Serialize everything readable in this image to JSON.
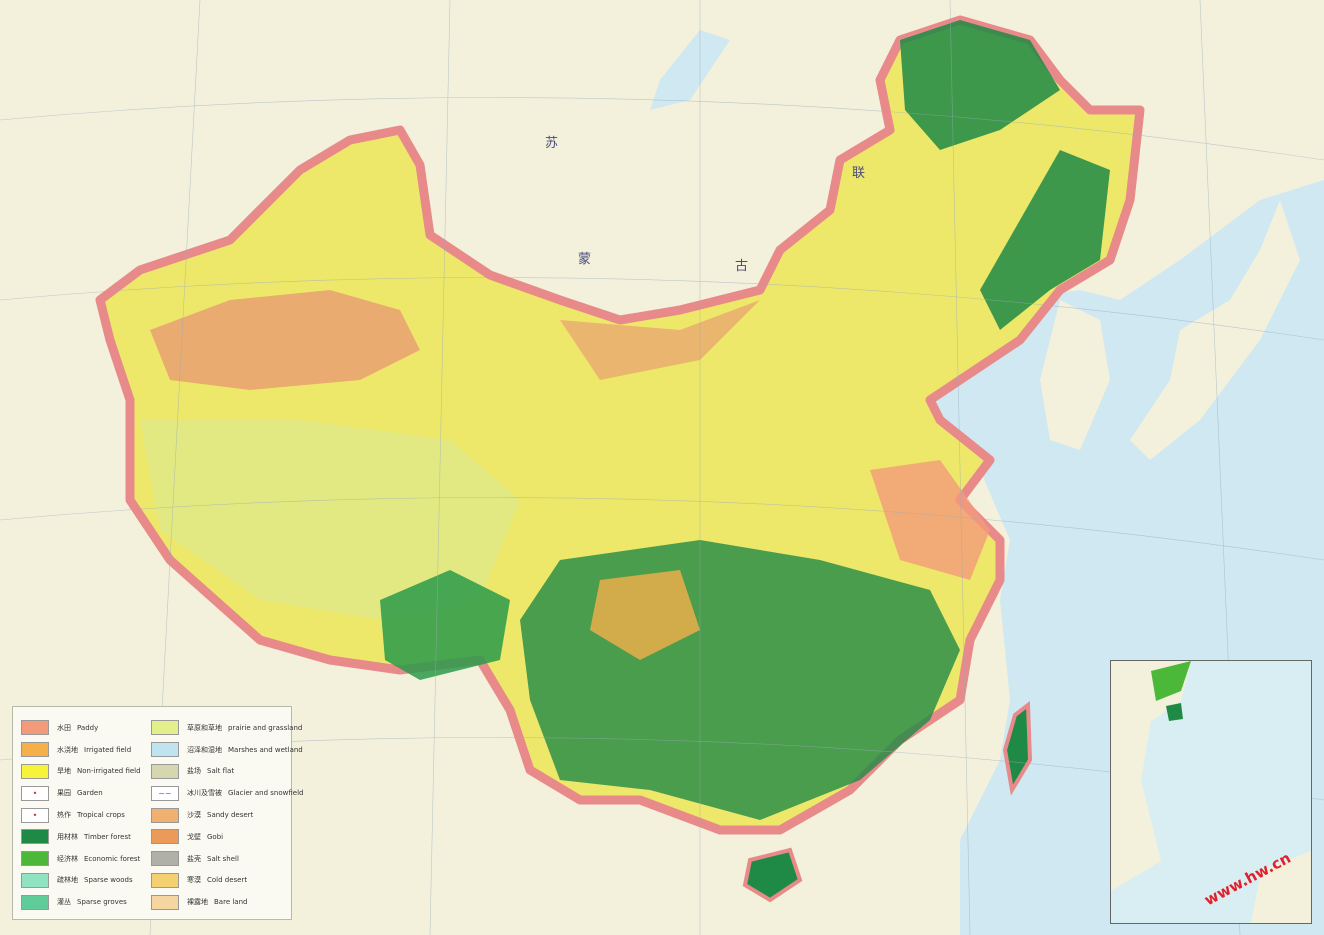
{
  "map": {
    "country_labels": [
      {
        "text": "苏"
      },
      {
        "text": "联"
      },
      {
        "text": "蒙"
      },
      {
        "text": "古"
      }
    ],
    "colors": {
      "sea": "#cfe8f2",
      "land_outside": "#f3f1dc",
      "border": "#e88a8a",
      "timber_forest": "#1f8a45",
      "non_irrigated": "#f5ef3a",
      "grassland": "#dfe98a",
      "gobi": "#e8a070"
    }
  },
  "legend": {
    "left": [
      {
        "cn": "水田",
        "en": "Paddy",
        "color": "#f29a7a",
        "symbol": ""
      },
      {
        "cn": "水浇地",
        "en": "Irrigated field",
        "color": "#f5b04a",
        "symbol": ""
      },
      {
        "cn": "旱地",
        "en": "Non-irrigated field",
        "color": "#f7f23a",
        "symbol": ""
      },
      {
        "cn": "果园",
        "en": "Garden",
        "color": "#ffffff",
        "symbol": "•"
      },
      {
        "cn": "热作",
        "en": "Tropical crops",
        "color": "#ffffff",
        "symbol": "•"
      },
      {
        "cn": "用材林",
        "en": "Timber forest",
        "color": "#1f8a45",
        "symbol": ""
      },
      {
        "cn": "经济林",
        "en": "Economic forest",
        "color": "#4cb83a",
        "symbol": ""
      },
      {
        "cn": "疏林地",
        "en": "Sparse woods",
        "color": "#8fe3c0",
        "symbol": ""
      },
      {
        "cn": "灌丛",
        "en": "Sparse groves",
        "color": "#5fcc9a",
        "symbol": ""
      }
    ],
    "right": [
      {
        "cn": "草原和草地",
        "en": "prairie and grassland",
        "color": "#e3ef8a",
        "symbol": ""
      },
      {
        "cn": "沼泽和湿地",
        "en": "Marshes and wetland",
        "color": "#bfe3ef",
        "symbol": ""
      },
      {
        "cn": "盐场",
        "en": "Salt flat",
        "color": "#d6d6b0",
        "symbol": ""
      },
      {
        "cn": "冰川及雪被",
        "en": "Glacier and snowfield",
        "color": "#ffffff",
        "symbol": "~~"
      },
      {
        "cn": "沙漠",
        "en": "Sandy desert",
        "color": "#f0b070",
        "symbol": ""
      },
      {
        "cn": "戈壁",
        "en": "Gobi",
        "color": "#ec9a5a",
        "symbol": ""
      },
      {
        "cn": "盐壳",
        "en": "Salt shell",
        "color": "#b0b0a8",
        "symbol": ""
      },
      {
        "cn": "寒漠",
        "en": "Cold desert",
        "color": "#f5d070",
        "symbol": ""
      },
      {
        "cn": "裸露地",
        "en": "Bare land",
        "color": "#f5d6a0",
        "symbol": ""
      }
    ]
  },
  "watermark": "www.hw.cn"
}
